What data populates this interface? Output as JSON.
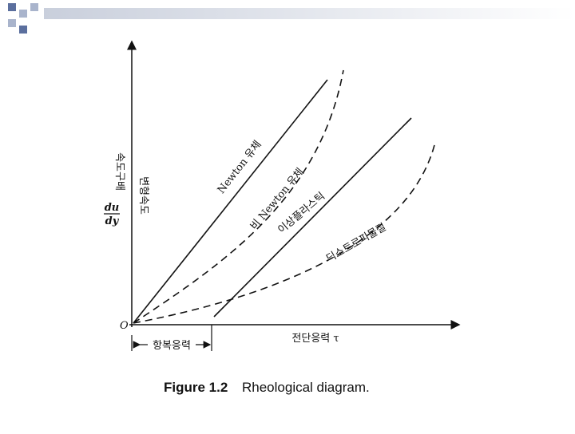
{
  "figure": {
    "origin": "O",
    "y_label": {
      "numerator": "du",
      "denominator": "dy",
      "side_text_1": "속도구배",
      "side_text_2": "변형속도"
    },
    "x_label": "전단응력 τ",
    "yield_label": "항복응력",
    "curve_labels": [
      "Newton 유체",
      "비 Newton 유체",
      "이상플라스틱",
      "딕소트로피물질"
    ]
  },
  "caption": {
    "label": "Figure 1.2",
    "text": "Rheological diagram."
  }
}
